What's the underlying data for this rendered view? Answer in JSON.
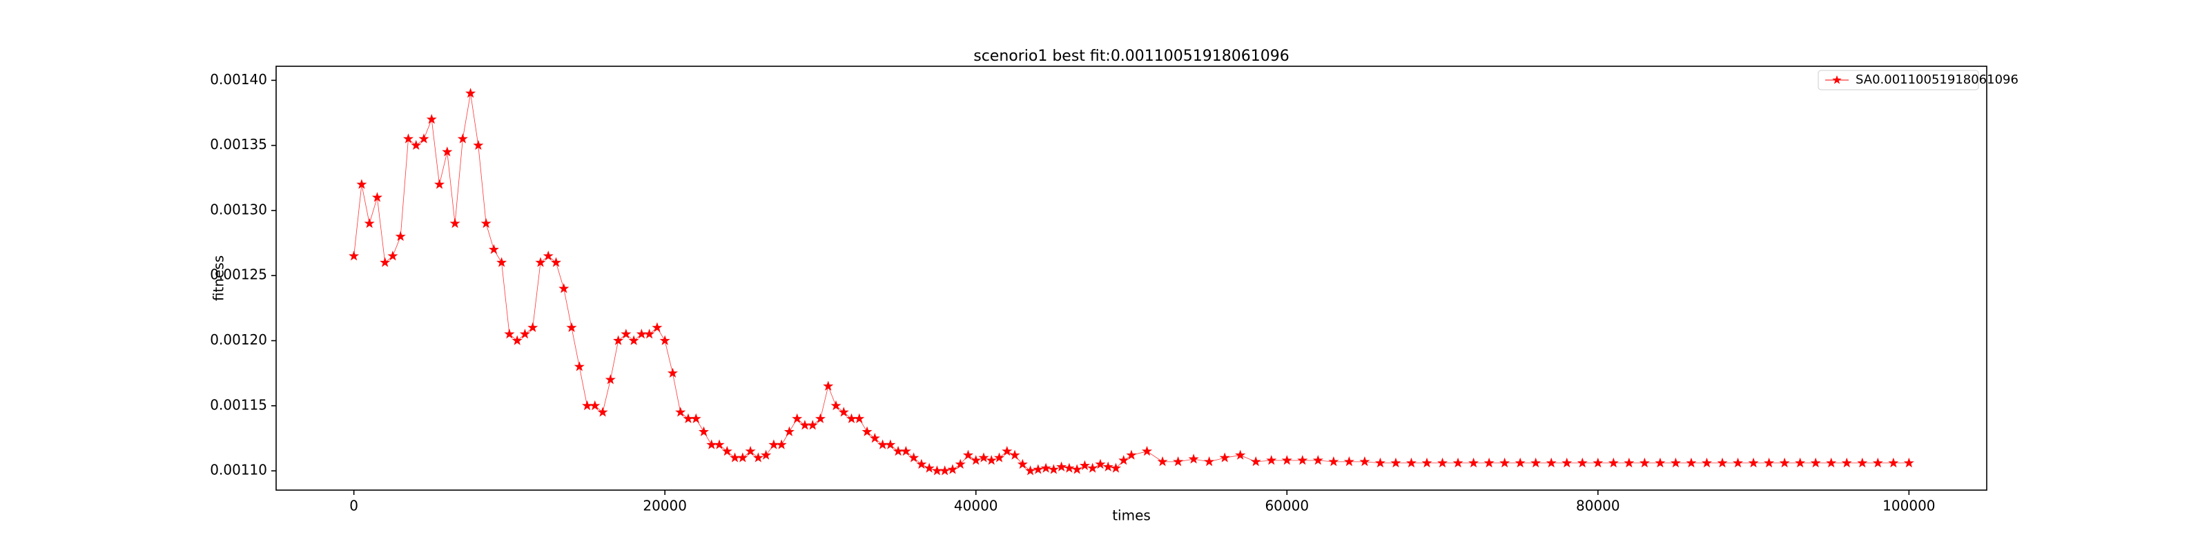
{
  "chart_data": {
    "type": "line",
    "title": "scenorio1 best fit:0.00110051918061096",
    "xlabel": "times",
    "ylabel": "fitness",
    "xlim": [
      -5000,
      105000
    ],
    "ylim": [
      0.0010852,
      0.0014108
    ],
    "xticks": [
      0,
      20000,
      40000,
      60000,
      80000,
      100000
    ],
    "yticks": [
      {
        "value": 0.0011,
        "label": "0.00110"
      },
      {
        "value": 0.00115,
        "label": "0.00115"
      },
      {
        "value": 0.0012,
        "label": "0.00120"
      },
      {
        "value": 0.00125,
        "label": "0.00125"
      },
      {
        "value": 0.0013,
        "label": "0.00130"
      },
      {
        "value": 0.00135,
        "label": "0.00135"
      },
      {
        "value": 0.0014,
        "label": "0.00140"
      }
    ],
    "legend": "upper right",
    "grid": false,
    "x": [
      0,
      500,
      1000,
      1500,
      2000,
      2500,
      3000,
      3500,
      4000,
      4500,
      5000,
      5500,
      6000,
      6500,
      7000,
      7500,
      8000,
      8500,
      9000,
      9500,
      10000,
      10500,
      11000,
      11500,
      12000,
      12500,
      13000,
      13500,
      14000,
      14500,
      15000,
      15500,
      16000,
      16500,
      17000,
      17500,
      18000,
      18500,
      19000,
      19500,
      20000,
      20500,
      21000,
      21500,
      22000,
      22500,
      23000,
      23500,
      24000,
      24500,
      25000,
      25500,
      26000,
      26500,
      27000,
      27500,
      28000,
      28500,
      29000,
      29500,
      30000,
      30500,
      31000,
      31500,
      32000,
      32500,
      33000,
      33500,
      34000,
      34500,
      35000,
      35500,
      36000,
      36500,
      37000,
      37500,
      38000,
      38500,
      39000,
      39500,
      40000,
      40500,
      41000,
      41500,
      42000,
      42500,
      43000,
      43500,
      44000,
      44500,
      45000,
      45500,
      46000,
      46500,
      47000,
      47500,
      48000,
      48500,
      49000,
      49500,
      50000,
      51000,
      52000,
      53000,
      54000,
      55000,
      56000,
      57000,
      58000,
      59000,
      60000,
      61000,
      62000,
      63000,
      64000,
      65000,
      66000,
      67000,
      68000,
      69000,
      70000,
      71000,
      72000,
      73000,
      74000,
      75000,
      76000,
      77000,
      78000,
      79000,
      80000,
      81000,
      82000,
      83000,
      84000,
      85000,
      86000,
      87000,
      88000,
      89000,
      90000,
      91000,
      92000,
      93000,
      94000,
      95000,
      96000,
      97000,
      98000,
      99000,
      100000
    ],
    "series": [
      {
        "name": "SA0.00110051918061096",
        "color": "#ff0000",
        "values": [
          0.001265,
          0.00132,
          0.00129,
          0.00131,
          0.00126,
          0.001265,
          0.00128,
          0.001355,
          0.00135,
          0.001355,
          0.00137,
          0.00132,
          0.001345,
          0.00129,
          0.001355,
          0.00139,
          0.00135,
          0.00129,
          0.00127,
          0.00126,
          0.001205,
          0.0012,
          0.001205,
          0.00121,
          0.00126,
          0.001265,
          0.00126,
          0.00124,
          0.00121,
          0.00118,
          0.00115,
          0.00115,
          0.001145,
          0.00117,
          0.0012,
          0.001205,
          0.0012,
          0.001205,
          0.001205,
          0.00121,
          0.0012,
          0.001175,
          0.001145,
          0.00114,
          0.00114,
          0.00113,
          0.00112,
          0.00112,
          0.001115,
          0.00111,
          0.00111,
          0.001115,
          0.00111,
          0.001112,
          0.00112,
          0.00112,
          0.00113,
          0.00114,
          0.001135,
          0.001135,
          0.00114,
          0.001165,
          0.00115,
          0.001145,
          0.00114,
          0.00114,
          0.00113,
          0.001125,
          0.00112,
          0.00112,
          0.001115,
          0.001115,
          0.00111,
          0.001105,
          0.001102,
          0.0011,
          0.0011,
          0.001101,
          0.001105,
          0.001112,
          0.001108,
          0.00111,
          0.001108,
          0.00111,
          0.001115,
          0.001112,
          0.001105,
          0.0011,
          0.001101,
          0.001102,
          0.001101,
          0.001103,
          0.001102,
          0.001101,
          0.001104,
          0.001102,
          0.001105,
          0.001103,
          0.001102,
          0.001108,
          0.001112,
          0.001115,
          0.001107,
          0.001107,
          0.001109,
          0.001107,
          0.00111,
          0.001112,
          0.001107,
          0.001108,
          0.001108,
          0.001108,
          0.001108,
          0.001107,
          0.001107,
          0.001107,
          0.001106,
          0.001106,
          0.001106,
          0.001106,
          0.001106,
          0.001106,
          0.001106,
          0.001106,
          0.001106,
          0.001106,
          0.001106,
          0.001106,
          0.001106,
          0.001106,
          0.001106,
          0.001106,
          0.001106,
          0.001106,
          0.001106,
          0.001106,
          0.001106,
          0.001106,
          0.001106,
          0.001106,
          0.001106,
          0.001106,
          0.001106,
          0.001106,
          0.001106,
          0.001106,
          0.001106,
          0.001106,
          0.001106,
          0.001106,
          0.001106
        ]
      }
    ]
  }
}
